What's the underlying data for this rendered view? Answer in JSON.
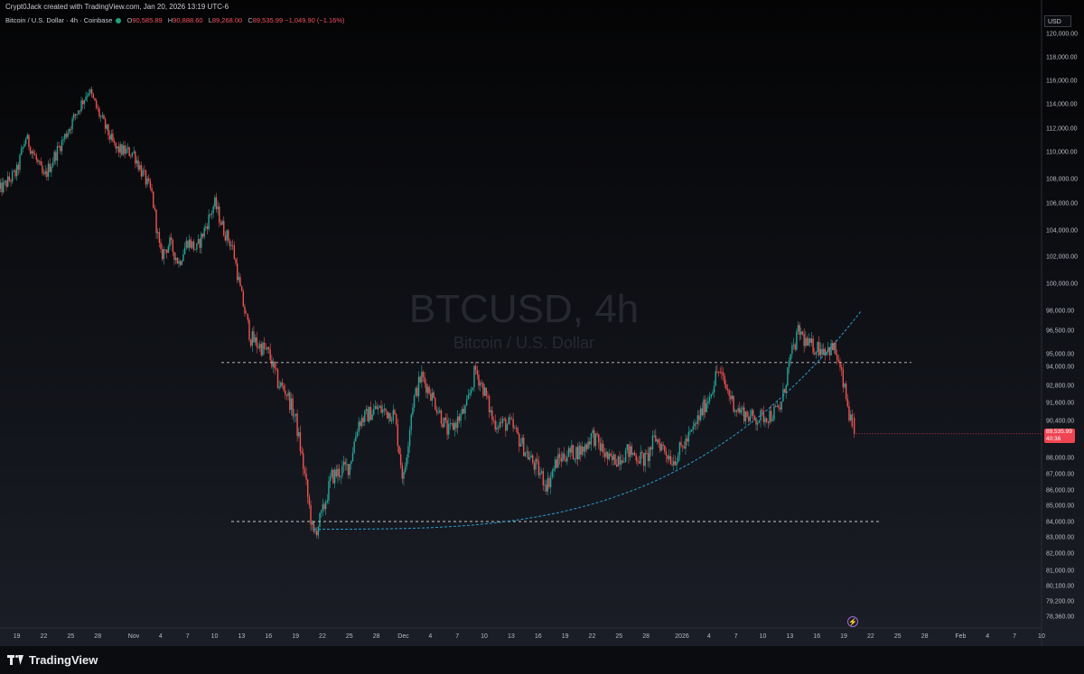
{
  "header": {
    "attribution": "Crypt0Jack created with TradingView.com, Jan 20, 2026 13:19 UTC-6",
    "symbol_title": "Bitcoin / U.S. Dollar · 4h · Coinbase",
    "ohlc": {
      "o_label": "O",
      "o": "90,585.89",
      "h_label": "H",
      "h": "90,888.60",
      "l_label": "L",
      "l": "89,268.00",
      "c_label": "C",
      "c": "89,535.99",
      "change": "−1,049.90 (−1.16%)"
    }
  },
  "watermark": {
    "ticker": "BTCUSD, 4h",
    "name": "Bitcoin / U.S. Dollar"
  },
  "price_scale": {
    "currency": "USD",
    "ticks": [
      "120,000.00",
      "118,000.00",
      "116,000.00",
      "114,000.00",
      "112,000.00",
      "110,000.00",
      "108,000.00",
      "106,000.00",
      "104,000.00",
      "102,000.00",
      "100,000.00",
      "98,000.00",
      "96,500.00",
      "95,000.00",
      "94,000.00",
      "92,800.00",
      "91,600.00",
      "90,400.00",
      "88,000.00",
      "87,000.00",
      "86,000.00",
      "85,000.00",
      "84,000.00",
      "83,000.00",
      "82,000.00",
      "81,000.00",
      "80,100.00",
      "79,200.00",
      "78,360.00"
    ],
    "last_price": "89,535.99",
    "countdown": "40:36"
  },
  "time_axis": {
    "ticks": [
      "19",
      "22",
      "25",
      "28",
      "Nov",
      "4",
      "7",
      "10",
      "13",
      "16",
      "19",
      "22",
      "25",
      "28",
      "Dec",
      "4",
      "7",
      "10",
      "13",
      "16",
      "19",
      "22",
      "25",
      "28",
      "2026",
      "4",
      "7",
      "10",
      "13",
      "16",
      "19",
      "22",
      "25",
      "28",
      "Feb",
      "4",
      "7",
      "10"
    ]
  },
  "footer": {
    "brand": "TradingView"
  },
  "colors": {
    "up": "#26a69a",
    "down": "#ef5350",
    "last_price": "#ef4452",
    "trend": "#2b9bd0",
    "level": "#c8c8c8"
  },
  "chart_data": {
    "type": "candlestick",
    "title": "BTCUSD, 4h",
    "ylim": [
      78000,
      120600
    ],
    "horizontal_levels": [
      94300,
      84000
    ],
    "trend_curve": {
      "from": {
        "x": "Nov 21",
        "y": 83500
      },
      "to": {
        "x": "Jan 21",
        "y": 98000
      }
    },
    "close_path": [
      [
        "Oct 17",
        107000
      ],
      [
        "Oct 19",
        108500
      ],
      [
        "Oct 20",
        111200
      ],
      [
        "Oct 22",
        108000
      ],
      [
        "Oct 24",
        110800
      ],
      [
        "Oct 26",
        113800
      ],
      [
        "Oct 27",
        115200
      ],
      [
        "Oct 28",
        113400
      ],
      [
        "Oct 30",
        110200
      ],
      [
        "Nov 1",
        109900
      ],
      [
        "Nov 3",
        106800
      ],
      [
        "Nov 4",
        102000
      ],
      [
        "Nov 5",
        103000
      ],
      [
        "Nov 6",
        101500
      ],
      [
        "Nov 7",
        103200
      ],
      [
        "Nov 8",
        102500
      ],
      [
        "Nov 10",
        106000
      ],
      [
        "Nov 11",
        104000
      ],
      [
        "Nov 12",
        102700
      ],
      [
        "Nov 13",
        99000
      ],
      [
        "Nov 14",
        96000
      ],
      [
        "Nov 16",
        95000
      ],
      [
        "Nov 17",
        93000
      ],
      [
        "Nov 18",
        92300
      ],
      [
        "Nov 19",
        90500
      ],
      [
        "Nov 20",
        87000
      ],
      [
        "Nov 21",
        83000
      ],
      [
        "Nov 22",
        84500
      ],
      [
        "Nov 23",
        86800
      ],
      [
        "Nov 25",
        87500
      ],
      [
        "Nov 26",
        90300
      ],
      [
        "Nov 28",
        91200
      ],
      [
        "Nov 30",
        90800
      ],
      [
        "Dec 1",
        86500
      ],
      [
        "Dec 2",
        91500
      ],
      [
        "Dec 3",
        93400
      ],
      [
        "Dec 4",
        92300
      ],
      [
        "Dec 6",
        89600
      ],
      [
        "Dec 8",
        91200
      ],
      [
        "Dec 9",
        93800
      ],
      [
        "Dec 10",
        92400
      ],
      [
        "Dec 11",
        90300
      ],
      [
        "Dec 13",
        90100
      ],
      [
        "Dec 15",
        88000
      ],
      [
        "Dec 16",
        87200
      ],
      [
        "Dec 17",
        86300
      ],
      [
        "Dec 18",
        87700
      ],
      [
        "Dec 19",
        88200
      ],
      [
        "Dec 21",
        88500
      ],
      [
        "Dec 22",
        89500
      ],
      [
        "Dec 24",
        87700
      ],
      [
        "Dec 26",
        88400
      ],
      [
        "Dec 28",
        87800
      ],
      [
        "Dec 29",
        89300
      ],
      [
        "Dec 31",
        87800
      ],
      [
        "Jan 2",
        89500
      ],
      [
        "Jan 4",
        92000
      ],
      [
        "Jan 5",
        93800
      ],
      [
        "Jan 7",
        91200
      ],
      [
        "Jan 9",
        90500
      ],
      [
        "Jan 11",
        90800
      ],
      [
        "Jan 12",
        91300
      ],
      [
        "Jan 13",
        94500
      ],
      [
        "Jan 14",
        96500
      ],
      [
        "Jan 15",
        95500
      ],
      [
        "Jan 17",
        95300
      ],
      [
        "Jan 18",
        95300
      ],
      [
        "Jan 19",
        92700
      ],
      [
        "Jan 20",
        89536
      ]
    ]
  }
}
